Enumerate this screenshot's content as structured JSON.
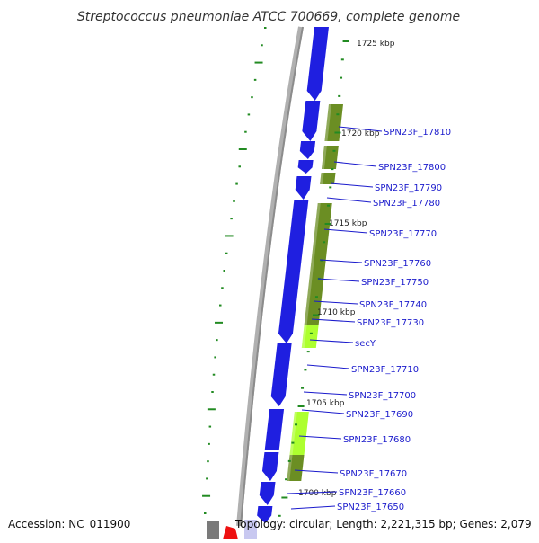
{
  "title": "Streptococcus pneumoniae ATCC 700669, complete genome",
  "footer": {
    "accession": "Accession: NC_011900",
    "summary": "Topology: circular; Length: 2,221,315 bp; Genes: 2,079"
  },
  "colors": {
    "cds": "#1f1fe0",
    "gene_olive": "#6b8e23",
    "gene_lime": "#adff2f",
    "tick": "#228b22",
    "label": "#1a1acc",
    "backbone": "#8c8c8c",
    "rna": "#ee1111"
  },
  "scale_labels": [
    "1725 kbp",
    "1720 kbp",
    "1715 kbp",
    "1710 kbp",
    "1705 kbp",
    "1700 kbp"
  ],
  "gene_labels": [
    "SPN23F_17810",
    "SPN23F_17800",
    "SPN23F_17790",
    "SPN23F_17780",
    "SPN23F_17770",
    "SPN23F_17760",
    "SPN23F_17750",
    "SPN23F_17740",
    "SPN23F_17730",
    "secY",
    "SPN23F_17710",
    "SPN23F_17700",
    "SPN23F_17690",
    "SPN23F_17680",
    "SPN23F_17670",
    "SPN23F_17660",
    "SPN23F_17650"
  ]
}
